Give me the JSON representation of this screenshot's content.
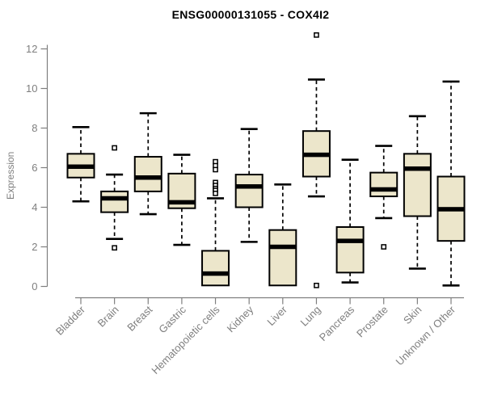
{
  "title": "ENSG00000131055 - COX4I2",
  "colors": {
    "background": "#ffffff",
    "box_fill": "#ece6cb",
    "box_stroke": "#000000",
    "median": "#000000",
    "whisker": "#000000",
    "outlier_stroke": "#000000",
    "outlier_fill": "#ffffff",
    "axis": "#7f7f7f",
    "tick_text": "#7f7f7f",
    "title_text": "#000000"
  },
  "chart_data": {
    "type": "box",
    "title": "ENSG00000131055 - COX4I2",
    "xlabel": "",
    "ylabel": "Expression",
    "ylim": [
      0,
      12.8
    ],
    "yticks": [
      0,
      2,
      4,
      6,
      8,
      10,
      12
    ],
    "grid": false,
    "legend": "none",
    "categories": [
      "Bladder",
      "Brain",
      "Breast",
      "Gastric",
      "Hematopoietic cells",
      "Kidney",
      "Liver",
      "Lung",
      "Pancreas",
      "Prostate",
      "Skin",
      "Unknown / Other"
    ],
    "series": [
      {
        "name": "Bladder",
        "low": 4.3,
        "q1": 5.5,
        "median": 6.05,
        "q3": 6.7,
        "high": 8.05,
        "outliers": []
      },
      {
        "name": "Brain",
        "low": 2.4,
        "q1": 3.75,
        "median": 4.45,
        "q3": 4.8,
        "high": 5.65,
        "outliers": [
          7.0,
          1.95
        ]
      },
      {
        "name": "Breast",
        "low": 3.65,
        "q1": 4.8,
        "median": 5.5,
        "q3": 6.55,
        "high": 8.75,
        "outliers": []
      },
      {
        "name": "Gastric",
        "low": 2.1,
        "q1": 3.95,
        "median": 4.25,
        "q3": 5.7,
        "high": 6.65,
        "outliers": []
      },
      {
        "name": "Hematopoietic cells",
        "low": 0.05,
        "q1": 0.05,
        "median": 0.65,
        "q3": 1.8,
        "high": 4.45,
        "outliers": [
          6.3,
          6.1,
          5.9,
          5.25,
          5.1,
          4.95,
          4.85,
          4.7
        ]
      },
      {
        "name": "Kidney",
        "low": 2.25,
        "q1": 4.0,
        "median": 5.05,
        "q3": 5.65,
        "high": 7.95,
        "outliers": []
      },
      {
        "name": "Liver",
        "low": 0.05,
        "q1": 0.05,
        "median": 2.0,
        "q3": 2.85,
        "high": 5.15,
        "outliers": []
      },
      {
        "name": "Lung",
        "low": 4.55,
        "q1": 5.55,
        "median": 6.65,
        "q3": 7.85,
        "high": 10.45,
        "outliers": [
          12.7,
          0.05
        ]
      },
      {
        "name": "Pancreas",
        "low": 0.2,
        "q1": 0.7,
        "median": 2.3,
        "q3": 3.0,
        "high": 6.4,
        "outliers": []
      },
      {
        "name": "Prostate",
        "low": 3.45,
        "q1": 4.55,
        "median": 4.9,
        "q3": 5.75,
        "high": 7.1,
        "outliers": [
          2.0
        ]
      },
      {
        "name": "Skin",
        "low": 0.9,
        "q1": 3.55,
        "median": 5.95,
        "q3": 6.7,
        "high": 8.6,
        "outliers": []
      },
      {
        "name": "Unknown / Other",
        "low": 0.05,
        "q1": 2.3,
        "median": 3.9,
        "q3": 5.55,
        "high": 10.35,
        "outliers": []
      }
    ]
  }
}
